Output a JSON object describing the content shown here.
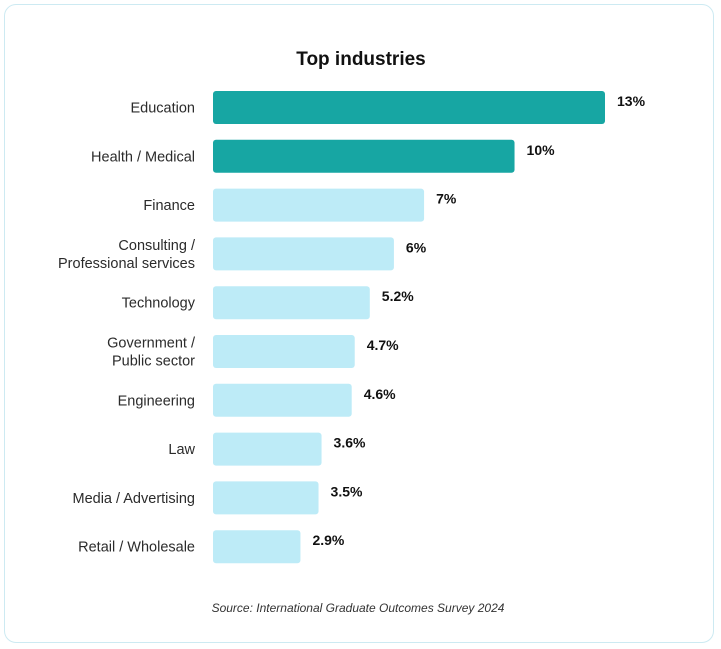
{
  "chart_data": {
    "type": "bar",
    "orientation": "horizontal",
    "title": "Top industries",
    "categories": [
      [
        "Education"
      ],
      [
        "Health / Medical"
      ],
      [
        "Finance"
      ],
      [
        "Consulting /",
        "Professional services"
      ],
      [
        "Technology"
      ],
      [
        "Government /",
        "Public sector"
      ],
      [
        "Engineering"
      ],
      [
        "Law"
      ],
      [
        "Media / Advertising"
      ],
      [
        "Retail / Wholesale"
      ]
    ],
    "values": [
      13,
      10,
      7,
      6,
      5.2,
      4.7,
      4.6,
      3.6,
      3.5,
      2.9
    ],
    "value_labels": [
      "13%",
      "10%",
      "7%",
      "6%",
      "5.2%",
      "4.7%",
      "4.6%",
      "3.6%",
      "3.5%",
      "2.9%"
    ],
    "highlighted": [
      true,
      true,
      false,
      false,
      false,
      false,
      false,
      false,
      false,
      false
    ],
    "colors": {
      "highlight": "#17a6a3",
      "default": "#bdebf7"
    },
    "xlim": [
      0,
      13
    ],
    "grid": false,
    "legend": "none",
    "source": "Source: International Graduate Outcomes Survey 2024"
  }
}
